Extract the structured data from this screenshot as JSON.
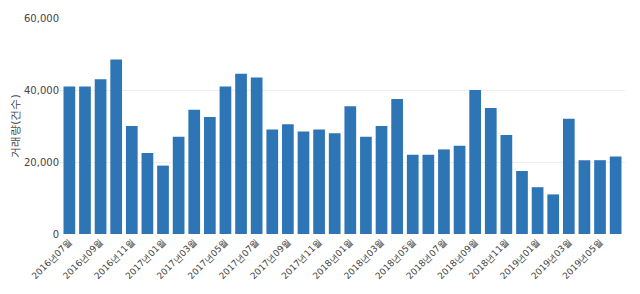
{
  "chart_data": {
    "type": "bar",
    "ylabel": "거래량(건수)",
    "categories": [
      "2016년07월",
      null,
      "2016년09월",
      null,
      "2016년11월",
      null,
      "2017년01월",
      null,
      "2017년03월",
      null,
      "2017년05월",
      null,
      "2017년07월",
      null,
      "2017년09월",
      null,
      "2017년11월",
      null,
      "2018년01월",
      null,
      "2018년03월",
      null,
      "2018년05월",
      null,
      "2018년07월",
      null,
      "2018년09월",
      null,
      "2018년11월",
      null,
      "2019년01월",
      null,
      "2019년03월",
      null,
      "2019년05월",
      null
    ],
    "values": [
      41000,
      41000,
      43000,
      48500,
      30000,
      22500,
      19000,
      27000,
      34500,
      32500,
      41000,
      44500,
      43500,
      29000,
      30500,
      28500,
      29000,
      28000,
      35500,
      27000,
      30000,
      37500,
      22000,
      22000,
      23500,
      24500,
      40000,
      35000,
      27500,
      17500,
      13000,
      11000,
      32000,
      20500,
      20500,
      21500
    ],
    "color": "#2e75b6",
    "ylim": [
      0,
      60000
    ],
    "yticks": [
      0,
      {
        "value": 20000,
        "label": "20,000"
      },
      {
        "value": 40000,
        "label": "40,000"
      },
      {
        "value": 60000,
        "label": "60,000"
      }
    ],
    "grid": true
  }
}
